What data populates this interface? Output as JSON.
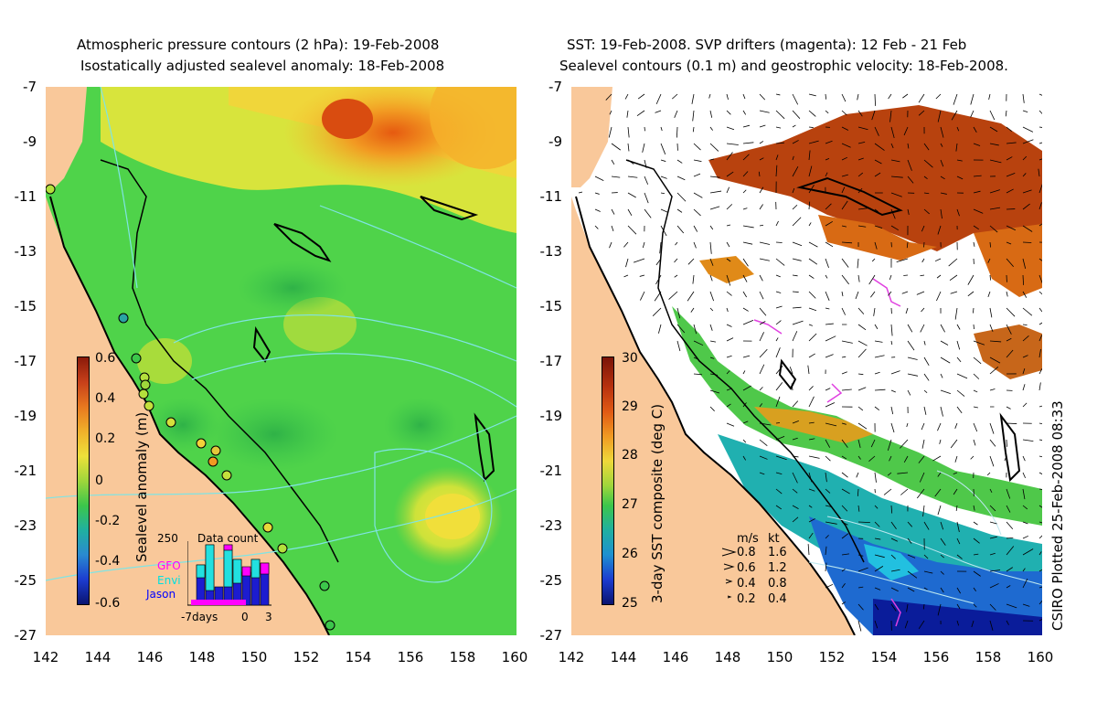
{
  "left_panel": {
    "title_line1": "Atmospheric pressure contours (2 hPa): 19-Feb-2008",
    "title_line2": "Isostatically adjusted sealevel anomaly: 18-Feb-2008",
    "colorbar_label": "Sealevel anomaly (m)",
    "colorbar_ticks": [
      "0.6",
      "0.4",
      "0.2",
      "0",
      "-0.2",
      "-0.4",
      "-0.6"
    ],
    "data_count": {
      "title": "Data count",
      "ymax_label": "250",
      "x_labels": [
        "-7days",
        "0",
        "3"
      ],
      "legend": [
        {
          "name": "GFO",
          "color": "#ff00ff"
        },
        {
          "name": "Envi",
          "color": "#00ffff"
        },
        {
          "name": "Jason",
          "color": "#0000ff"
        }
      ]
    }
  },
  "right_panel": {
    "title_line1": "SST: 19-Feb-2008. SVP drifters (magenta): 12 Feb - 21 Feb",
    "title_line2": "Sealevel contours (0.1 m) and geostrophic velocity: 18-Feb-2008.",
    "colorbar_label": "3-day SST composite (deg C)",
    "colorbar_ticks": [
      "30",
      "29",
      "28",
      "27",
      "26",
      "25"
    ],
    "velocity_legend": {
      "header_ms": "m/s",
      "header_kt": "kt",
      "rows": [
        {
          "ms": "0.8",
          "kt": "1.6"
        },
        {
          "ms": "0.6",
          "kt": "1.2"
        },
        {
          "ms": "0.4",
          "kt": "0.8"
        },
        {
          "ms": "0.2",
          "kt": "0.4"
        }
      ]
    }
  },
  "y_ticks": [
    "-7",
    "-9",
    "-11",
    "-13",
    "-15",
    "-17",
    "-19",
    "-21",
    "-23",
    "-25",
    "-27"
  ],
  "x_ticks": [
    "142",
    "144",
    "146",
    "148",
    "150",
    "152",
    "154",
    "156",
    "158",
    "160"
  ],
  "credit": "CSIRO Plotted 25-Feb-2008 08:33",
  "colors": {
    "land": "#f9c89a",
    "ocean_green": "#4fd34a",
    "ocean_yellow": "#f3e13a",
    "ocean_orange": "#f5a020",
    "sst_white": "#ffffff"
  }
}
